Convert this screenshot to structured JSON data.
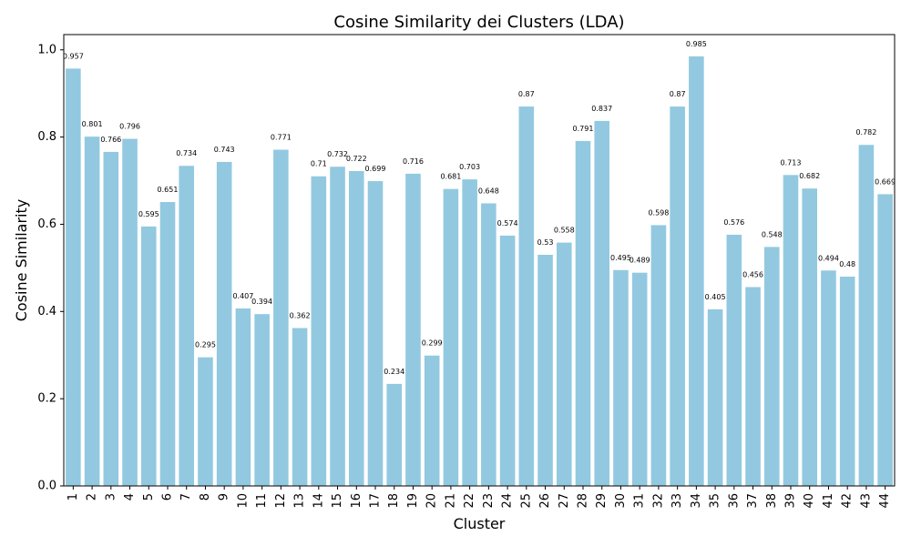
{
  "chart_data": {
    "type": "bar",
    "title": "Cosine Similarity dei Clusters (LDA)",
    "xlabel": "Cluster",
    "ylabel": "Cosine Similarity",
    "ylim": [
      0,
      1.035
    ],
    "yticks": [
      "0.0",
      "0.2",
      "0.4",
      "0.6",
      "0.8",
      "1.0"
    ],
    "ytick_values": [
      0,
      0.2,
      0.4,
      0.6,
      0.8,
      1.0
    ],
    "categories": [
      "1",
      "2",
      "3",
      "4",
      "5",
      "6",
      "7",
      "8",
      "9",
      "10",
      "11",
      "12",
      "13",
      "14",
      "15",
      "16",
      "17",
      "18",
      "19",
      "20",
      "21",
      "22",
      "23",
      "24",
      "25",
      "26",
      "27",
      "28",
      "29",
      "30",
      "31",
      "32",
      "33",
      "34",
      "35",
      "36",
      "37",
      "38",
      "39",
      "40",
      "41",
      "42",
      "43",
      "44"
    ],
    "values": [
      0.957,
      0.801,
      0.766,
      0.796,
      0.595,
      0.651,
      0.734,
      0.295,
      0.743,
      0.407,
      0.394,
      0.771,
      0.362,
      0.71,
      0.732,
      0.722,
      0.699,
      0.234,
      0.716,
      0.299,
      0.681,
      0.703,
      0.648,
      0.574,
      0.87,
      0.53,
      0.558,
      0.791,
      0.837,
      0.495,
      0.489,
      0.598,
      0.87,
      0.985,
      0.405,
      0.576,
      0.456,
      0.548,
      0.713,
      0.682,
      0.494,
      0.48,
      0.782,
      0.669
    ],
    "labels": [
      "0.957",
      "0.801",
      "0.766",
      "0.796",
      "0.595",
      "0.651",
      "0.734",
      "0.295",
      "0.743",
      "0.407",
      "0.394",
      "0.771",
      "0.362",
      "0.71",
      "0.732",
      "0.722",
      "0.699",
      "0.234",
      "0.716",
      "0.299",
      "0.681",
      "0.703",
      "0.648",
      "0.574",
      "0.87",
      "0.53",
      "0.558",
      "0.791",
      "0.837",
      "0.495",
      "0.489",
      "0.598",
      "0.87",
      "0.985",
      "0.405",
      "0.576",
      "0.456",
      "0.548",
      "0.713",
      "0.682",
      "0.494",
      "0.48",
      "0.782",
      "0.669"
    ],
    "bar_color": "#92c9e0",
    "grid": false,
    "legend": "none"
  }
}
